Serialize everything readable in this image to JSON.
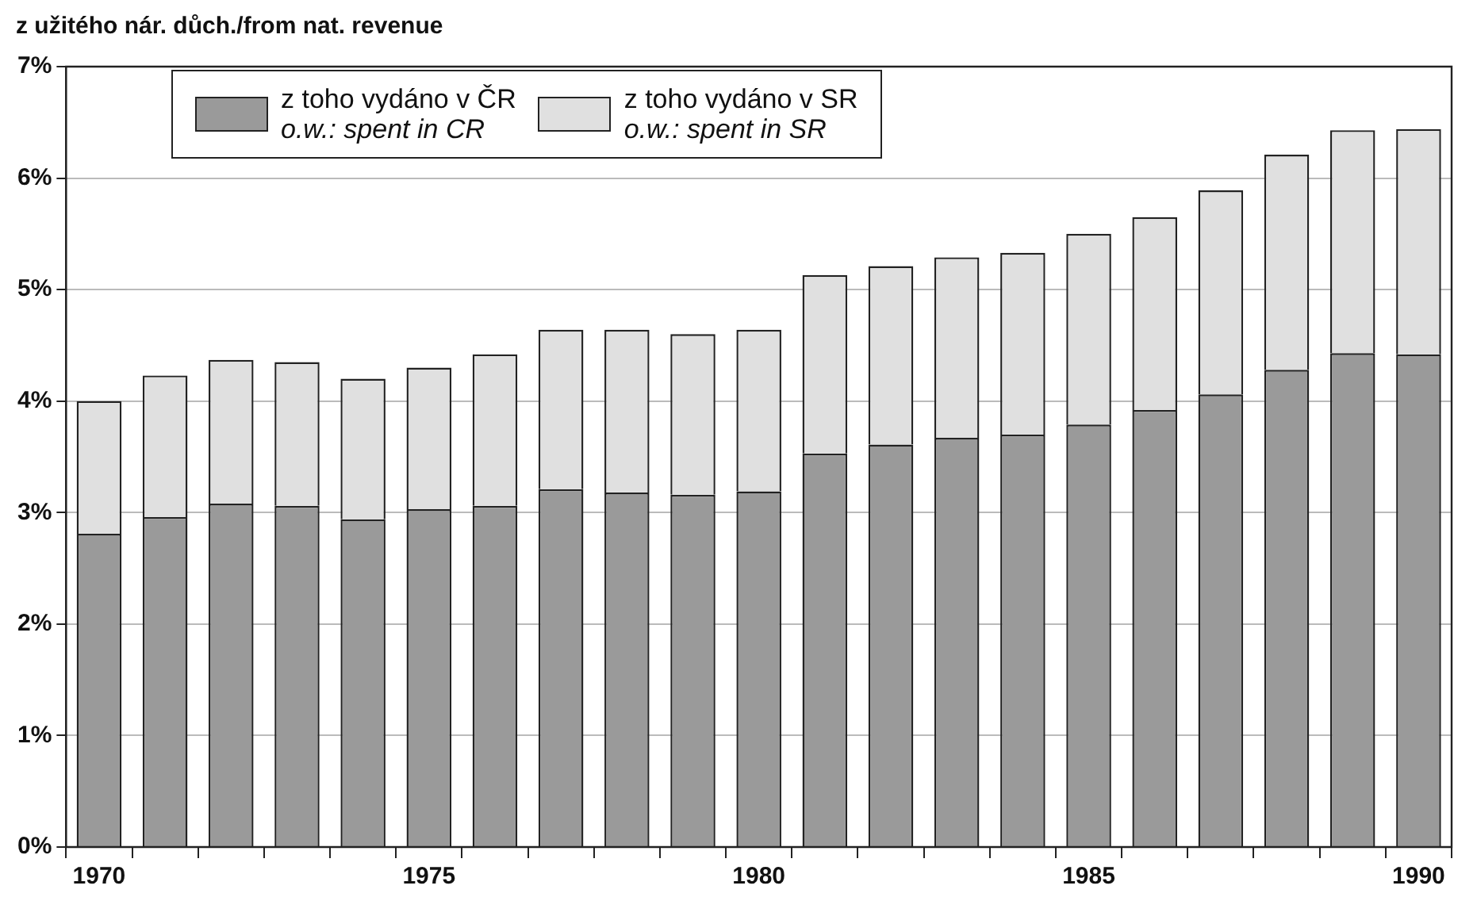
{
  "chart_data": {
    "type": "bar",
    "title": "z užitého nár. důch./from nat. revenue",
    "stacked": true,
    "grid": "y",
    "legend": "top left",
    "categories": [
      "1970",
      null,
      null,
      null,
      null,
      "1975",
      null,
      null,
      null,
      null,
      "1980",
      null,
      null,
      null,
      null,
      "1985",
      null,
      null,
      null,
      null,
      "1990"
    ],
    "series": [
      {
        "name": "z toho vydáno v ČR\no.w.: spent in CR",
        "color": "#9a9a9a",
        "values": [
          2.81,
          2.96,
          3.08,
          3.06,
          2.94,
          3.03,
          3.06,
          3.21,
          3.18,
          3.16,
          3.19,
          3.53,
          3.61,
          3.67,
          3.7,
          3.79,
          3.92,
          4.06,
          4.28,
          4.43,
          4.42
        ]
      },
      {
        "name": "z toho vydáno v SR\no.w.: spent in SR",
        "color": "#e0e0e0",
        "values": [
          1.19,
          1.27,
          1.29,
          1.29,
          1.26,
          1.27,
          1.36,
          1.43,
          1.46,
          1.44,
          1.45,
          1.6,
          1.6,
          1.62,
          1.63,
          1.71,
          1.73,
          1.83,
          1.93,
          2.0,
          2.02
        ]
      }
    ],
    "ylim": [
      0,
      7
    ],
    "yticks": [
      {
        "value": 0,
        "label": "0%"
      },
      {
        "value": 1,
        "label": "1%"
      },
      {
        "value": 2,
        "label": "2%"
      },
      {
        "value": 3,
        "label": "3%"
      },
      {
        "value": 4,
        "label": "4%"
      },
      {
        "value": 5,
        "label": "5%"
      },
      {
        "value": 6,
        "label": "6%"
      },
      {
        "value": 7,
        "label": "7%"
      }
    ]
  }
}
